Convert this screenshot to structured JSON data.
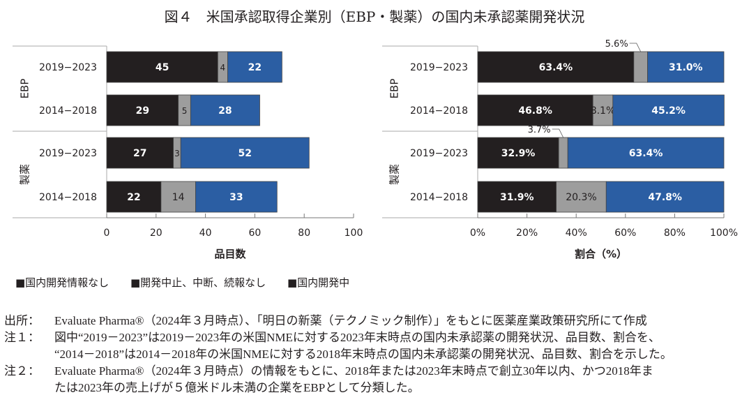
{
  "title": "図４　米国承認取得企業別（EBP・製薬）の国内未承認薬開発状況",
  "colors": {
    "none": "#231f20",
    "stopped": "#9d9d9d",
    "developing": "#2b5ea3"
  },
  "legend": [
    "■国内開発情報なし",
    "■開発中止、中断、続報なし",
    "■国内開発中"
  ],
  "chart_data": [
    {
      "type": "bar",
      "orientation": "horizontal-stacked",
      "groups": [
        "EBP",
        "製薬"
      ],
      "categories": [
        "2019−2023",
        "2014−2018",
        "2019−2023",
        "2014−2018"
      ],
      "series": [
        {
          "name": "国内開発情報なし",
          "values": [
            45,
            29,
            27,
            22
          ]
        },
        {
          "name": "開発中止、中断、続報なし",
          "values": [
            4,
            5,
            3,
            14
          ]
        },
        {
          "name": "国内開発中",
          "values": [
            22,
            28,
            52,
            33
          ]
        }
      ],
      "xlabel": "品目数",
      "xlim": [
        0,
        100
      ],
      "xticks": [
        "0",
        "20",
        "40",
        "60",
        "80",
        "100"
      ]
    },
    {
      "type": "bar",
      "orientation": "horizontal-stacked-percent",
      "groups": [
        "EBP",
        "製薬"
      ],
      "categories": [
        "2019−2023",
        "2014−2018",
        "2019−2023",
        "2014−2018"
      ],
      "series": [
        {
          "name": "国内開発情報なし",
          "values": [
            63.4,
            46.8,
            32.9,
            31.9
          ],
          "labels": [
            "63.4%",
            "46.8%",
            "32.9%",
            "31.9%"
          ]
        },
        {
          "name": "開発中止、中断、続報なし",
          "values": [
            5.6,
            8.1,
            3.7,
            20.3
          ],
          "labels": [
            "5.6%",
            "8.1%",
            "3.7%",
            "20.3%"
          ]
        },
        {
          "name": "国内開発中",
          "values": [
            31.0,
            45.2,
            63.4,
            47.8
          ],
          "labels": [
            "31.0%",
            "45.2%",
            "63.4%",
            "47.8%"
          ]
        }
      ],
      "xlabel": "割合（%）",
      "xlim": [
        0,
        100
      ],
      "xticks": [
        "0%",
        "20%",
        "40%",
        "60%",
        "80%",
        "100%"
      ]
    }
  ],
  "notes": [
    {
      "label": "出所：",
      "text": "Evaluate Pharma®（2024年３月時点）、「明日の新薬（テクノミック制作）」をもとに医薬産業政策研究所にて作成"
    },
    {
      "label": "注１：",
      "text": "図中“2019－2023”は2019－2023年の米国NMEに対する2023年末時点の国内未承認薬の開発状況、品目数、割合を、"
    },
    {
      "label": "",
      "text": "“2014－2018”は2014－2018年の米国NMEに対する2018年末時点の国内未承認薬の開発状況、品目数、割合を示した。"
    },
    {
      "label": "注２：",
      "text": "Evaluate Pharma®（2024年３月時点）の情報をもとに、2018年または2023年末時点で創立30年以内、かつ2018年ま"
    },
    {
      "label": "",
      "text": "たは2023年の売上げが５億米ドル未満の企業をEBPとして分類した。"
    }
  ]
}
